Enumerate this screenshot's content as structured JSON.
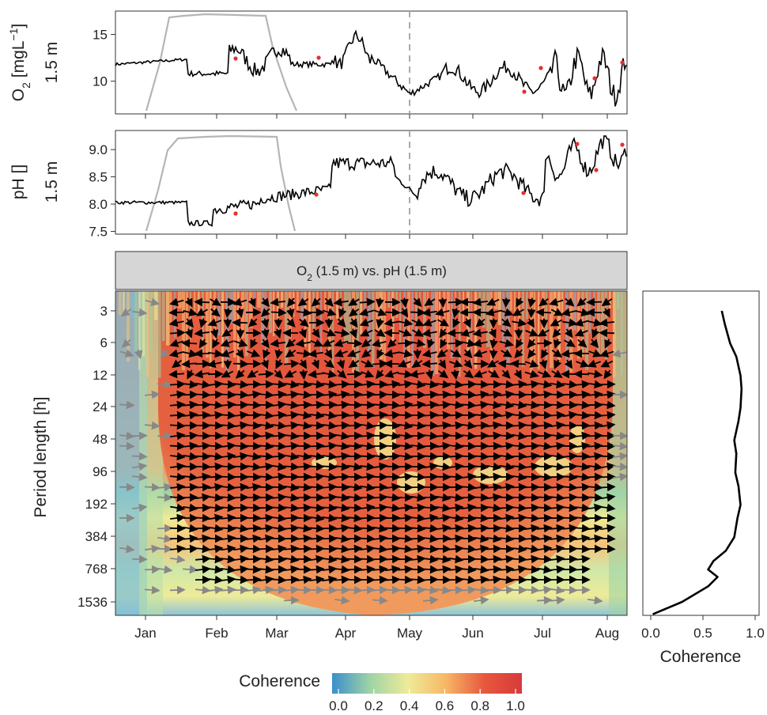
{
  "chart_data": [
    {
      "type": "line",
      "panel": "o2",
      "ylabel_main": "O",
      "ylabel_sub": "2",
      "ylabel_unit": " [mgL",
      "ylabel_sup": "−1",
      "ylabel_close": "]",
      "ylabel_depth": "1.5 m",
      "yticks": [
        10,
        15
      ],
      "ylim": [
        6.5,
        17.5
      ],
      "x_marker_month": "May"
    },
    {
      "type": "line",
      "panel": "ph",
      "ylabel_main": "pH []",
      "ylabel_depth": "1.5 m",
      "yticks": [
        7.5,
        8.0,
        8.5,
        9.0
      ],
      "ylim": [
        7.45,
        9.35
      ],
      "x_marker_month": "May"
    },
    {
      "type": "heatmap",
      "panel": "coherence",
      "strip_label_a": "O",
      "strip_label_a_sub": "2",
      "strip_label_rest": " (1.5 m) vs. pH (1.5 m)",
      "ylabel": "Period length [h]",
      "yticks": [
        "3",
        "6",
        "12",
        "24",
        "48",
        "96",
        "192",
        "384",
        "768",
        "1536"
      ],
      "xticks": [
        "Jan",
        "Feb",
        "Mar",
        "Apr",
        "May",
        "Jun",
        "Jul",
        "Aug"
      ],
      "colorbar_title": "Coherence",
      "colorbar_ticks": [
        "0.0",
        "0.2",
        "0.4",
        "0.6",
        "0.8",
        "1.0"
      ],
      "colorbar_colors": [
        "#3a8fcc",
        "#9fd3a6",
        "#eeeb98",
        "#f7b766",
        "#e7583f",
        "#d83a3a"
      ]
    },
    {
      "type": "line",
      "panel": "mean-coherence",
      "xlabel": "Coherence",
      "xticks": [
        "0.0",
        "0.5",
        "1.0"
      ],
      "xlim": [
        0,
        1.05
      ],
      "periods": [
        3,
        4,
        6,
        8,
        12,
        16,
        24,
        32,
        48,
        64,
        96,
        128,
        192,
        256,
        384,
        512,
        640,
        768,
        900,
        1100,
        1536,
        2000
      ],
      "values": [
        0.68,
        0.71,
        0.76,
        0.82,
        0.86,
        0.87,
        0.86,
        0.84,
        0.8,
        0.82,
        0.81,
        0.84,
        0.86,
        0.83,
        0.8,
        0.72,
        0.6,
        0.55,
        0.64,
        0.55,
        0.3,
        0.02
      ]
    }
  ]
}
